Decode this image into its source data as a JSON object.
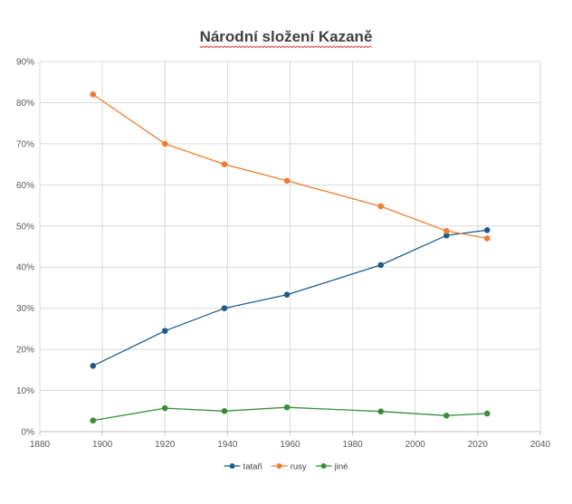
{
  "chart_data": {
    "type": "scatter",
    "title": "Národní složení Kazaně",
    "xlabel": "",
    "ylabel": "",
    "xlim": [
      1880,
      2040
    ],
    "ylim": [
      0,
      0.9
    ],
    "x_ticks": [
      "1880",
      "1900",
      "1920",
      "1940",
      "1960",
      "1980",
      "2000",
      "2020",
      "2040"
    ],
    "y_ticks": [
      "0%",
      "10%",
      "20%",
      "30%",
      "40%",
      "50%",
      "60%",
      "70%",
      "80%",
      "90%"
    ],
    "grid": true,
    "legend_position": "bottom",
    "series": [
      {
        "name": "tataři",
        "color": "#1f5a8a",
        "points": [
          [
            1897,
            0.16
          ],
          [
            1920,
            0.245
          ],
          [
            1939,
            0.3
          ],
          [
            1959,
            0.333
          ],
          [
            1989,
            0.405
          ],
          [
            2010,
            0.477
          ],
          [
            2023,
            0.49
          ]
        ]
      },
      {
        "name": "rusy",
        "color": "#ed7d31",
        "points": [
          [
            1897,
            0.82
          ],
          [
            1920,
            0.7
          ],
          [
            1939,
            0.65
          ],
          [
            1959,
            0.61
          ],
          [
            1989,
            0.548
          ],
          [
            2010,
            0.488
          ],
          [
            2023,
            0.47
          ]
        ]
      },
      {
        "name": "jiné",
        "color": "#3c8c3c",
        "points": [
          [
            1897,
            0.027
          ],
          [
            1920,
            0.057
          ],
          [
            1939,
            0.05
          ],
          [
            1959,
            0.059
          ],
          [
            1989,
            0.049
          ],
          [
            2010,
            0.039
          ],
          [
            2023,
            0.044
          ]
        ]
      }
    ]
  }
}
